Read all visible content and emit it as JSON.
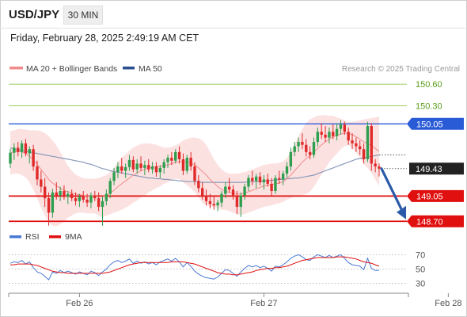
{
  "header": {
    "symbol": "USD/JPY",
    "timeframe": "30 MIN",
    "datetime": "Friday, February 28, 2025 2:49:19 AM CET"
  },
  "colors": {
    "ma20": "#f28c8c",
    "ma50": "#2b4f8f",
    "resistance_green": "#9ccc65",
    "resistance_blue": "#2a5bd7",
    "support_red": "#e01010",
    "candle_up": "#2e9e4f",
    "candle_down": "#e02a2a",
    "band_fill": "#fbdada",
    "rsi": "#4a78d4",
    "rsi_ma": "#e01010",
    "arrow": "#2a5aa8"
  },
  "chart_data": [
    {
      "type": "candlestick",
      "legend": [
        {
          "name": "MA 20 + Bollinger Bands",
          "color": "#f28c8c"
        },
        {
          "name": "MA 50",
          "color": "#2b4f8f"
        }
      ],
      "watermark": "Research © 2025 Trading Central",
      "ylim": [
        148.67,
        150.69
      ],
      "x_ticks": [
        {
          "label": "Feb 26",
          "index": 18
        },
        {
          "label": "Feb 27",
          "index": 66
        },
        {
          "label": "Feb 28",
          "index": 114
        }
      ],
      "levels": [
        {
          "value": 150.6,
          "label": "150.60",
          "role": "resistance-2",
          "color": "#9ccc65"
        },
        {
          "value": 150.3,
          "label": "150.30",
          "role": "resistance-1",
          "color": "#9ccc65"
        },
        {
          "value": 150.05,
          "label": "150.05",
          "role": "pivot",
          "color": "#2a5bd7"
        },
        {
          "value": 149.43,
          "label": "149.43",
          "role": "last-price",
          "color": "#222222"
        },
        {
          "value": 149.05,
          "label": "149.05",
          "role": "support-1",
          "color": "#e01010"
        },
        {
          "value": 148.7,
          "label": "148.70",
          "role": "support-2",
          "color": "#e01010"
        }
      ],
      "candles": [
        [
          149.5,
          149.7,
          149.44,
          149.65
        ],
        [
          149.65,
          149.78,
          149.55,
          149.72
        ],
        [
          149.72,
          149.8,
          149.6,
          149.66
        ],
        [
          149.66,
          149.82,
          149.58,
          149.78
        ],
        [
          149.78,
          149.84,
          149.6,
          149.64
        ],
        [
          149.64,
          149.74,
          149.5,
          149.7
        ],
        [
          149.7,
          149.76,
          149.4,
          149.46
        ],
        [
          149.46,
          149.54,
          149.2,
          149.28
        ],
        [
          149.28,
          149.4,
          149.1,
          149.18
        ],
        [
          149.18,
          149.3,
          148.9,
          149.02
        ],
        [
          149.02,
          149.1,
          148.64,
          148.82
        ],
        [
          148.82,
          149.15,
          148.75,
          149.1
        ],
        [
          149.1,
          149.24,
          149.0,
          149.06
        ],
        [
          149.06,
          149.18,
          148.98,
          149.12
        ],
        [
          149.12,
          149.2,
          149.0,
          149.04
        ],
        [
          149.04,
          149.12,
          148.94,
          149.08
        ],
        [
          149.08,
          149.14,
          148.98,
          149.02
        ],
        [
          149.02,
          149.1,
          148.92,
          148.98
        ],
        [
          148.98,
          149.08,
          148.9,
          149.04
        ],
        [
          149.04,
          149.12,
          148.96,
          149.0
        ],
        [
          149.0,
          149.08,
          148.9,
          148.96
        ],
        [
          148.96,
          149.1,
          148.88,
          149.06
        ],
        [
          149.06,
          149.12,
          148.98,
          149.02
        ],
        [
          149.02,
          149.1,
          148.84,
          148.9
        ],
        [
          148.9,
          149.04,
          148.64,
          148.98
        ],
        [
          148.98,
          149.14,
          148.92,
          149.08
        ],
        [
          149.08,
          149.3,
          149.02,
          149.26
        ],
        [
          149.26,
          149.44,
          149.2,
          149.38
        ],
        [
          149.38,
          149.52,
          149.3,
          149.46
        ],
        [
          149.46,
          149.58,
          149.36,
          149.4
        ],
        [
          149.4,
          149.5,
          149.3,
          149.45
        ],
        [
          149.45,
          149.62,
          149.4,
          149.55
        ],
        [
          149.55,
          149.6,
          149.38,
          149.42
        ],
        [
          149.42,
          149.56,
          149.36,
          149.5
        ],
        [
          149.5,
          149.6,
          149.4,
          149.44
        ],
        [
          149.44,
          149.54,
          149.34,
          149.48
        ],
        [
          149.48,
          149.56,
          149.38,
          149.42
        ],
        [
          149.42,
          149.52,
          149.36,
          149.46
        ],
        [
          149.46,
          149.52,
          149.32,
          149.38
        ],
        [
          149.38,
          149.48,
          149.3,
          149.44
        ],
        [
          149.44,
          149.56,
          149.36,
          149.52
        ],
        [
          149.52,
          149.62,
          149.44,
          149.58
        ],
        [
          149.58,
          149.66,
          149.48,
          149.54
        ],
        [
          149.54,
          149.7,
          149.5,
          149.66
        ],
        [
          149.66,
          149.74,
          149.5,
          149.56
        ],
        [
          149.56,
          149.64,
          149.34,
          149.4
        ],
        [
          149.4,
          149.62,
          149.36,
          149.58
        ],
        [
          149.58,
          149.66,
          149.4,
          149.46
        ],
        [
          149.46,
          149.52,
          149.2,
          149.26
        ],
        [
          149.26,
          149.34,
          149.1,
          149.16
        ],
        [
          149.16,
          149.24,
          149.0,
          149.06
        ],
        [
          149.06,
          149.14,
          148.92,
          148.98
        ],
        [
          148.98,
          149.08,
          148.88,
          148.94
        ],
        [
          148.94,
          149.04,
          148.86,
          148.92
        ],
        [
          148.92,
          149.0,
          148.84,
          148.96
        ],
        [
          148.96,
          149.12,
          148.9,
          149.08
        ],
        [
          149.08,
          149.24,
          149.02,
          149.18
        ],
        [
          149.18,
          149.3,
          149.1,
          149.14
        ],
        [
          149.14,
          149.2,
          149.0,
          149.04
        ],
        [
          149.04,
          149.12,
          148.8,
          148.9
        ],
        [
          148.9,
          149.1,
          148.76,
          149.06
        ],
        [
          149.06,
          149.22,
          149.0,
          149.18
        ],
        [
          149.18,
          149.34,
          149.12,
          149.3
        ],
        [
          149.3,
          149.4,
          149.2,
          149.26
        ],
        [
          149.26,
          149.36,
          149.16,
          149.32
        ],
        [
          149.32,
          149.38,
          149.2,
          149.24
        ],
        [
          149.24,
          149.34,
          149.14,
          149.28
        ],
        [
          149.28,
          149.36,
          149.18,
          149.22
        ],
        [
          149.22,
          149.3,
          149.06,
          149.12
        ],
        [
          149.12,
          149.34,
          149.08,
          149.3
        ],
        [
          149.3,
          149.4,
          149.22,
          149.28
        ],
        [
          149.28,
          149.4,
          149.2,
          149.36
        ],
        [
          149.36,
          149.52,
          149.3,
          149.46
        ],
        [
          149.46,
          149.72,
          149.4,
          149.66
        ],
        [
          149.66,
          149.8,
          149.6,
          149.74
        ],
        [
          149.74,
          149.86,
          149.66,
          149.8
        ],
        [
          149.8,
          149.92,
          149.7,
          149.76
        ],
        [
          149.76,
          149.84,
          149.6,
          149.66
        ],
        [
          149.66,
          149.74,
          149.56,
          149.62
        ],
        [
          149.62,
          149.86,
          149.58,
          149.8
        ],
        [
          149.8,
          150.0,
          149.74,
          149.94
        ],
        [
          149.94,
          150.06,
          149.84,
          149.9
        ],
        [
          149.9,
          150.02,
          149.8,
          149.86
        ],
        [
          149.86,
          150.0,
          149.78,
          149.94
        ],
        [
          149.94,
          150.04,
          149.84,
          149.88
        ],
        [
          149.88,
          150.06,
          149.82,
          149.98
        ],
        [
          149.98,
          150.1,
          149.9,
          150.04
        ],
        [
          150.04,
          150.08,
          149.9,
          149.94
        ],
        [
          149.94,
          150.0,
          149.76,
          149.82
        ],
        [
          149.82,
          149.92,
          149.7,
          149.78
        ],
        [
          149.78,
          149.86,
          149.66,
          149.74
        ],
        [
          149.74,
          149.82,
          149.62,
          149.7
        ],
        [
          149.7,
          149.78,
          149.5,
          149.56
        ],
        [
          149.56,
          150.08,
          149.52,
          150.02
        ],
        [
          150.02,
          150.06,
          149.4,
          149.5
        ],
        [
          149.5,
          149.56,
          149.38,
          149.46
        ],
        [
          149.46,
          149.5,
          149.32,
          149.43
        ]
      ],
      "ma20": [
        149.65,
        149.66,
        149.67,
        149.66,
        149.64,
        149.6,
        149.55,
        149.49,
        149.42,
        149.35,
        149.28,
        149.23,
        149.19,
        149.16,
        149.13,
        149.11,
        149.09,
        149.08,
        149.07,
        149.06,
        149.05,
        149.05,
        149.05,
        149.04,
        149.04,
        149.06,
        149.09,
        149.13,
        149.18,
        149.22,
        149.26,
        149.3,
        149.34,
        149.37,
        149.4,
        149.42,
        149.44,
        149.45,
        149.46,
        149.46,
        149.47,
        149.48,
        149.5,
        149.52,
        149.53,
        149.53,
        149.52,
        149.51,
        149.48,
        149.44,
        149.39,
        149.34,
        149.28,
        149.23,
        149.18,
        149.14,
        149.12,
        149.1,
        149.09,
        149.08,
        149.08,
        149.09,
        149.11,
        149.13,
        149.15,
        149.17,
        149.19,
        149.2,
        149.21,
        149.22,
        149.23,
        149.25,
        149.29,
        149.34,
        149.4,
        149.46,
        149.52,
        149.57,
        149.61,
        149.66,
        149.71,
        149.76,
        149.8,
        149.84,
        149.87,
        149.89,
        149.91,
        149.92,
        149.92,
        149.9,
        149.87,
        149.84,
        149.8,
        149.78,
        149.75,
        149.71,
        149.67
      ],
      "bb_upper": [
        149.95,
        149.96,
        149.98,
        149.98,
        149.97,
        149.96,
        149.96,
        149.96,
        149.95,
        149.92,
        149.88,
        149.82,
        149.75,
        149.66,
        149.56,
        149.47,
        149.4,
        149.35,
        149.32,
        149.3,
        149.29,
        149.29,
        149.29,
        149.3,
        149.32,
        149.34,
        149.38,
        149.44,
        149.52,
        149.58,
        149.63,
        149.68,
        149.72,
        149.75,
        149.77,
        149.78,
        149.78,
        149.77,
        149.76,
        149.74,
        149.72,
        149.72,
        149.73,
        149.75,
        149.78,
        149.82,
        149.84,
        149.86,
        149.86,
        149.85,
        149.82,
        149.76,
        149.66,
        149.56,
        149.48,
        149.42,
        149.38,
        149.36,
        149.36,
        149.36,
        149.37,
        149.38,
        149.4,
        149.42,
        149.44,
        149.46,
        149.48,
        149.49,
        149.5,
        149.5,
        149.51,
        149.53,
        149.58,
        149.66,
        149.76,
        149.88,
        149.98,
        150.06,
        150.11,
        150.14,
        150.16,
        150.17,
        150.17,
        150.16,
        150.16,
        150.14,
        150.12,
        150.1,
        150.08,
        150.08,
        150.09,
        150.1,
        150.11,
        150.12,
        150.13,
        150.14,
        150.15
      ],
      "bb_lower": [
        149.35,
        149.36,
        149.36,
        149.34,
        149.31,
        149.24,
        149.14,
        149.02,
        148.89,
        148.78,
        148.68,
        148.64,
        148.63,
        148.66,
        148.7,
        148.75,
        148.78,
        148.81,
        148.82,
        148.82,
        148.81,
        148.81,
        148.81,
        148.78,
        148.76,
        148.78,
        148.8,
        148.82,
        148.84,
        148.86,
        148.89,
        148.92,
        148.96,
        148.99,
        149.03,
        149.06,
        149.1,
        149.13,
        149.16,
        149.18,
        149.22,
        149.24,
        149.27,
        149.29,
        149.28,
        149.24,
        149.2,
        149.16,
        149.1,
        149.03,
        148.96,
        148.92,
        148.9,
        148.9,
        148.88,
        148.86,
        148.86,
        148.84,
        148.82,
        148.8,
        148.79,
        148.8,
        148.82,
        148.84,
        148.86,
        148.88,
        148.9,
        148.91,
        148.92,
        148.94,
        148.95,
        148.97,
        149.0,
        149.02,
        149.04,
        149.04,
        149.06,
        149.08,
        149.11,
        149.18,
        149.26,
        149.35,
        149.43,
        149.52,
        149.58,
        149.64,
        149.7,
        149.74,
        149.76,
        149.72,
        149.65,
        149.58,
        149.49,
        149.44,
        149.37,
        149.28,
        149.19
      ],
      "ma50": [
        149.72,
        149.7,
        149.69,
        149.68,
        149.67,
        149.66,
        149.65,
        149.64,
        149.63,
        149.62,
        149.61,
        149.6,
        149.59,
        149.58,
        149.57,
        149.56,
        149.55,
        149.54,
        149.53,
        149.52,
        149.5,
        149.49,
        149.47,
        149.45,
        149.43,
        149.42,
        149.4,
        149.39,
        149.38,
        149.37,
        149.36,
        149.35,
        149.34,
        149.33,
        149.32,
        149.31,
        149.3,
        149.3,
        149.29,
        149.29,
        149.28,
        149.28,
        149.27,
        149.27,
        149.26,
        149.26,
        149.25,
        149.25,
        149.25,
        149.25,
        149.24,
        149.24,
        149.24,
        149.24,
        149.24,
        149.24,
        149.24,
        149.24,
        149.24,
        149.24,
        149.24,
        149.24,
        149.25,
        149.25,
        149.25,
        149.25,
        149.26,
        149.26,
        149.27,
        149.27,
        149.28,
        149.28,
        149.29,
        149.29,
        149.3,
        149.3,
        149.31,
        149.32,
        149.33,
        149.34,
        149.36,
        149.38,
        149.4,
        149.42,
        149.44,
        149.46,
        149.48,
        149.5,
        149.52,
        149.54,
        149.56,
        149.57,
        149.58,
        149.59,
        149.6,
        149.61,
        149.62
      ],
      "projection_arrow": {
        "from_value": 149.43,
        "to_value": 148.76
      }
    },
    {
      "type": "line",
      "legend": [
        {
          "name": "RSI",
          "color": "#4a78d4"
        },
        {
          "name": "9MA",
          "color": "#e01010"
        }
      ],
      "ylim": [
        23,
        77
      ],
      "y_ticks": [
        70,
        50,
        30
      ],
      "rsi": [
        58,
        60,
        59,
        62,
        57,
        60,
        52,
        46,
        44,
        40,
        35,
        46,
        44,
        48,
        45,
        47,
        45,
        43,
        46,
        44,
        42,
        47,
        45,
        41,
        46,
        50,
        56,
        60,
        62,
        59,
        61,
        64,
        58,
        61,
        58,
        60,
        57,
        59,
        56,
        60,
        62,
        64,
        61,
        65,
        60,
        53,
        59,
        54,
        47,
        43,
        40,
        38,
        37,
        36,
        39,
        44,
        49,
        48,
        44,
        40,
        46,
        51,
        55,
        53,
        55,
        52,
        54,
        51,
        47,
        54,
        53,
        56,
        60,
        65,
        68,
        70,
        67,
        63,
        62,
        67,
        70,
        68,
        66,
        69,
        66,
        68,
        70,
        65,
        59,
        56,
        55,
        54,
        49,
        65,
        51,
        48,
        48
      ],
      "rsi_ma": [
        56,
        56,
        57,
        57,
        57,
        57,
        56,
        55,
        53,
        51,
        49,
        47,
        46,
        45,
        45,
        44,
        44,
        44,
        44,
        44,
        44,
        44,
        44,
        44,
        44,
        45,
        46,
        48,
        50,
        52,
        54,
        56,
        57,
        58,
        59,
        59,
        59,
        59,
        59,
        59,
        59,
        59,
        60,
        60,
        60,
        60,
        59,
        58,
        57,
        55,
        53,
        51,
        49,
        47,
        45,
        44,
        43,
        43,
        42,
        42,
        43,
        44,
        45,
        46,
        48,
        49,
        50,
        51,
        51,
        52,
        52,
        53,
        54,
        56,
        58,
        60,
        62,
        63,
        64,
        65,
        66,
        66,
        66,
        66,
        66,
        67,
        67,
        67,
        66,
        65,
        64,
        62,
        60,
        59,
        58,
        56,
        54
      ]
    }
  ]
}
